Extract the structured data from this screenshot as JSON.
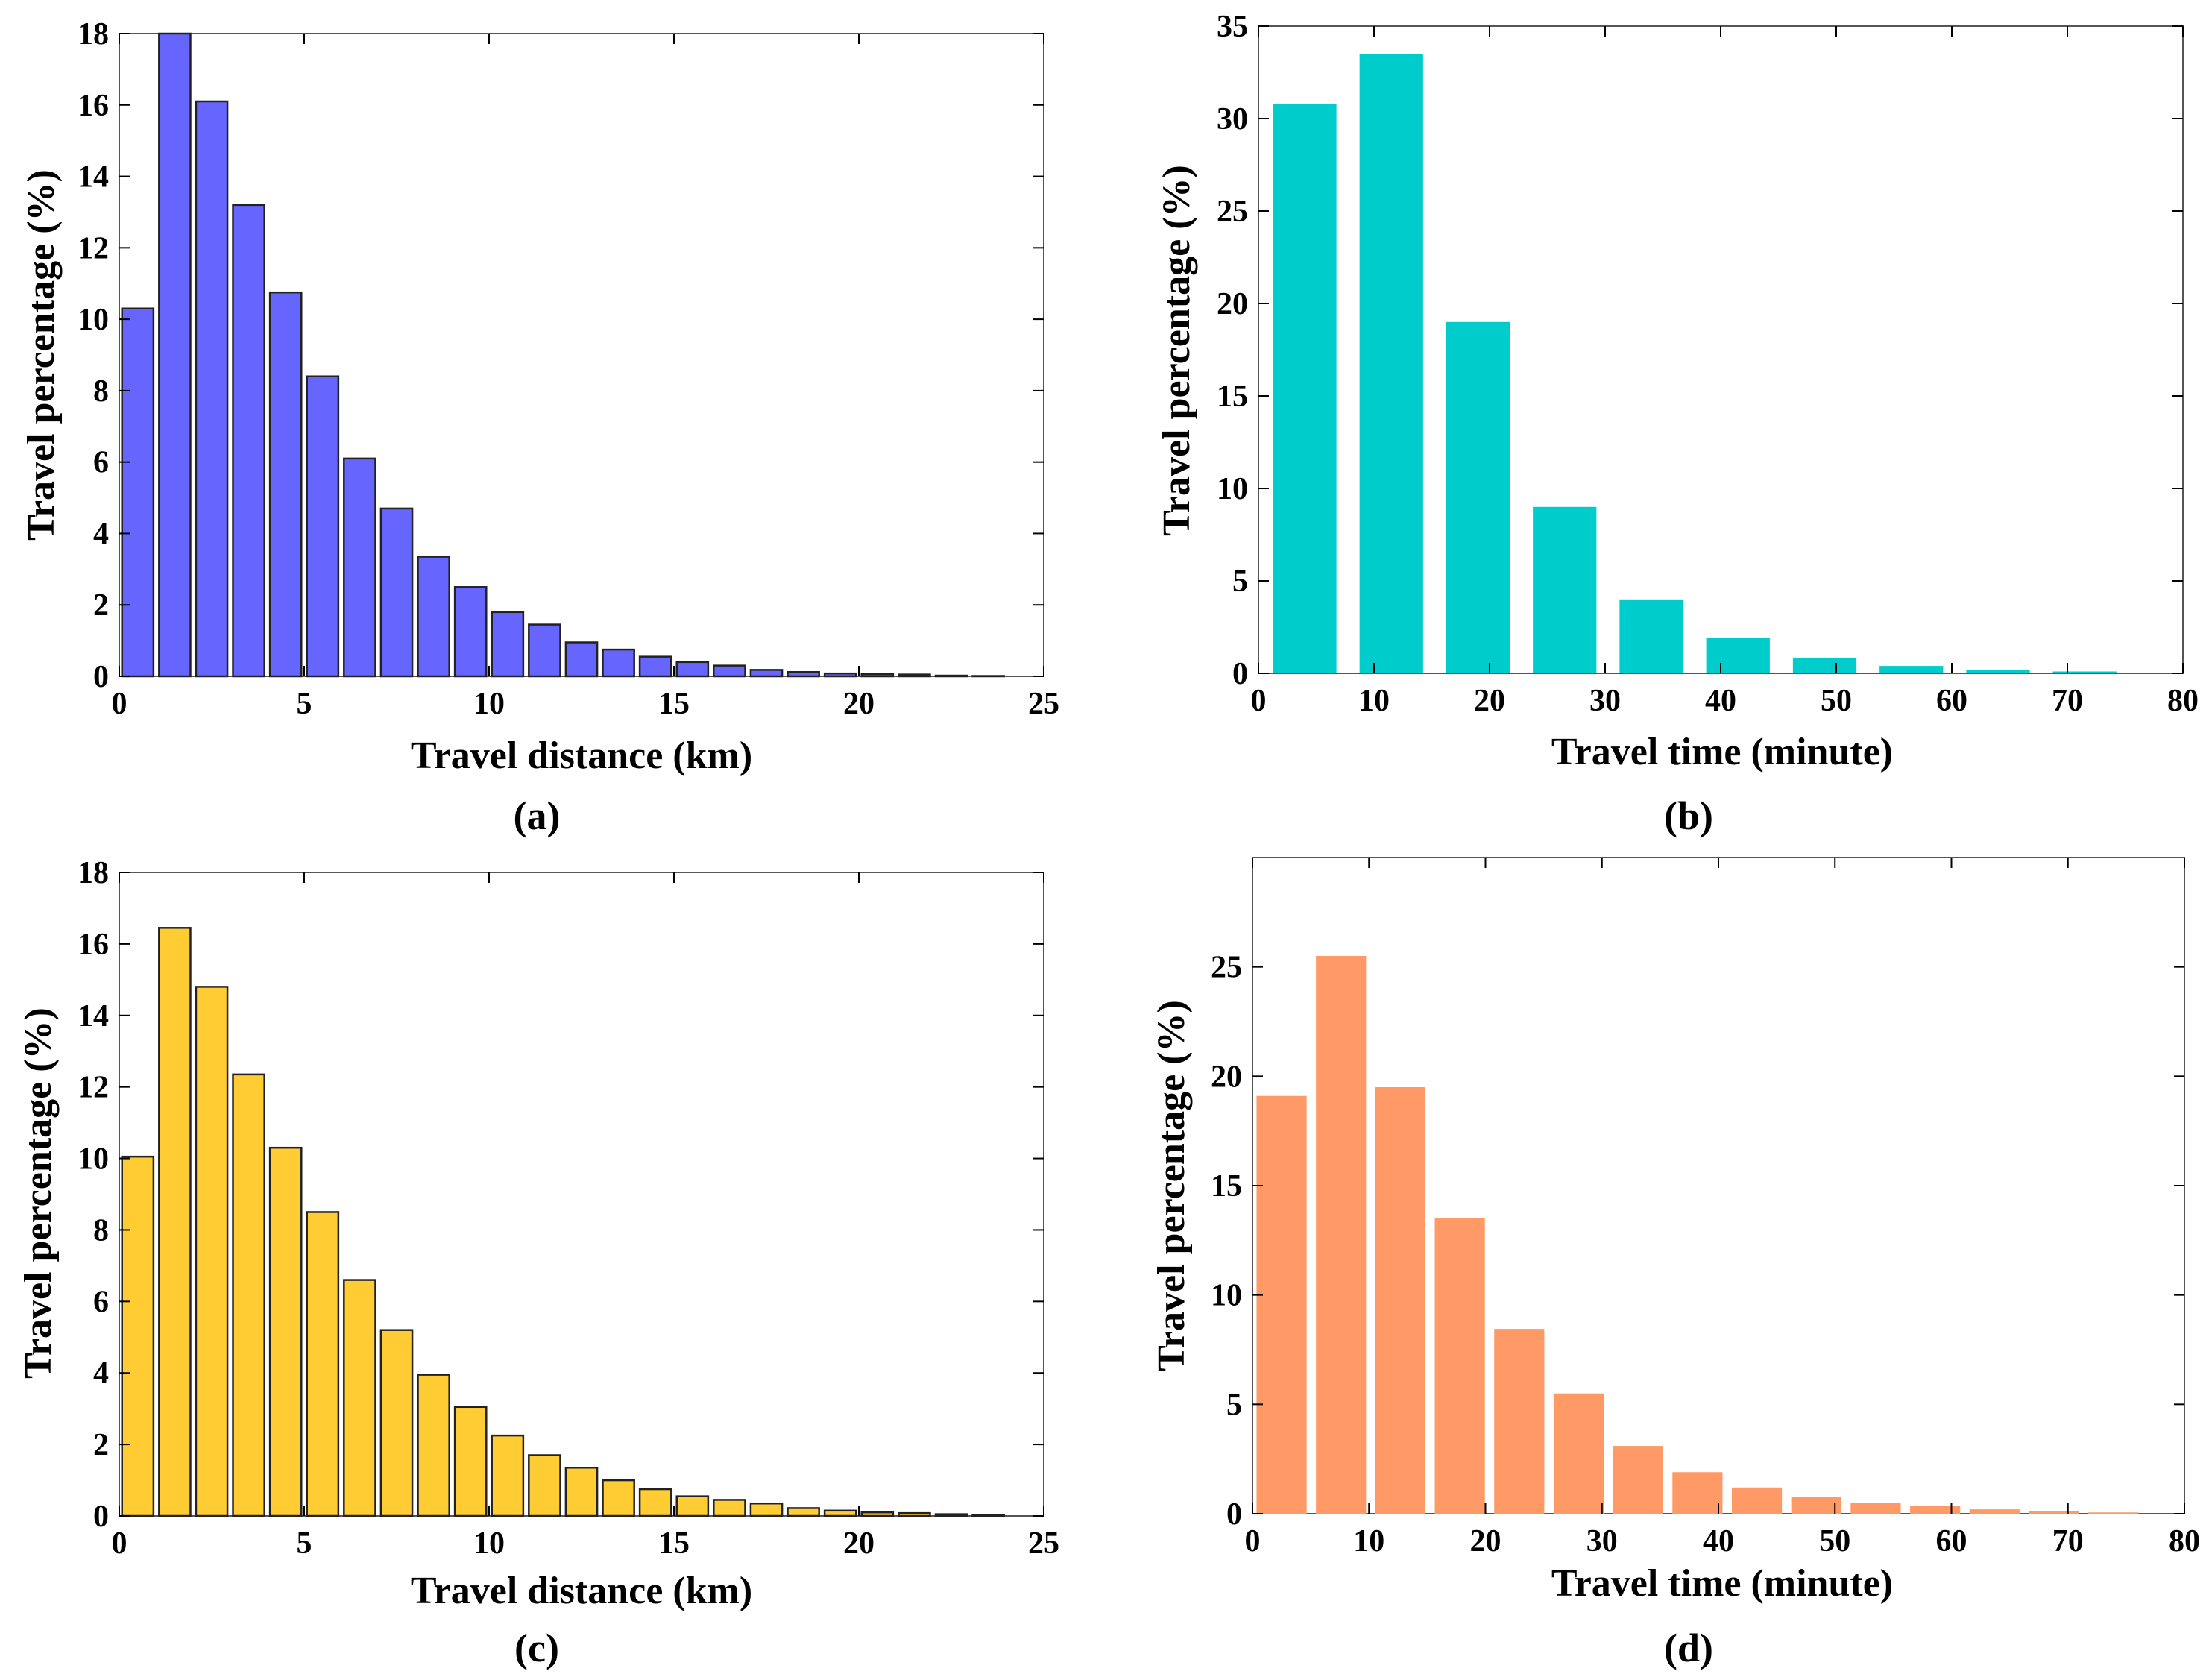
{
  "figure": {
    "panel_labels": [
      "(a)",
      "(b)",
      "(c)",
      "(d)"
    ]
  },
  "chart_data": [
    {
      "id": "a",
      "type": "bar",
      "panel_label": "(a)",
      "xlabel": "Travel distance (km)",
      "ylabel": "Travel percentage (%)",
      "xlim": [
        0,
        25
      ],
      "ylim": [
        0,
        18
      ],
      "xticks": [
        0,
        5,
        10,
        15,
        20,
        25
      ],
      "yticks": [
        0,
        2,
        4,
        6,
        8,
        10,
        12,
        14,
        16,
        18
      ],
      "bar_width": 0.85,
      "color": "#6666ff",
      "edge": true,
      "x": [
        0.5,
        1.5,
        2.5,
        3.5,
        4.5,
        5.5,
        6.5,
        7.5,
        8.5,
        9.5,
        10.5,
        11.5,
        12.5,
        13.5,
        14.5,
        15.5,
        16.5,
        17.5,
        18.5,
        19.5,
        20.5,
        21.5,
        22.5,
        23.5
      ],
      "values": [
        10.3,
        18.0,
        16.1,
        13.2,
        10.75,
        8.4,
        6.1,
        4.7,
        3.35,
        2.5,
        1.8,
        1.45,
        0.95,
        0.75,
        0.55,
        0.4,
        0.3,
        0.18,
        0.12,
        0.08,
        0.06,
        0.05,
        0.02,
        0.01
      ]
    },
    {
      "id": "b",
      "type": "bar",
      "panel_label": "(b)",
      "xlabel": "Travel time (minute)",
      "ylabel": "Travel percentage (%)",
      "xlim": [
        0,
        80
      ],
      "ylim": [
        0,
        35
      ],
      "xticks": [
        0,
        10,
        20,
        30,
        40,
        50,
        60,
        70,
        80
      ],
      "yticks": [
        0,
        5,
        10,
        15,
        20,
        25,
        30,
        35
      ],
      "bar_width": 5.5,
      "color": "#00cccc",
      "edge": false,
      "x": [
        4,
        11.5,
        19,
        26.5,
        34,
        41.5,
        49,
        56.5,
        64,
        71.5
      ],
      "values": [
        30.8,
        33.5,
        19.0,
        9.0,
        4.0,
        1.9,
        0.85,
        0.4,
        0.2,
        0.1
      ]
    },
    {
      "id": "c",
      "type": "bar",
      "panel_label": "(c)",
      "xlabel": "Travel distance (km)",
      "ylabel": "Travel percentage (%)",
      "xlim": [
        0,
        25
      ],
      "ylim": [
        0,
        18
      ],
      "xticks": [
        0,
        5,
        10,
        15,
        20,
        25
      ],
      "yticks": [
        0,
        2,
        4,
        6,
        8,
        10,
        12,
        14,
        16,
        18
      ],
      "bar_width": 0.85,
      "color": "#ffcc33",
      "edge": true,
      "x": [
        0.5,
        1.5,
        2.5,
        3.5,
        4.5,
        5.5,
        6.5,
        7.5,
        8.5,
        9.5,
        10.5,
        11.5,
        12.5,
        13.5,
        14.5,
        15.5,
        16.5,
        17.5,
        18.5,
        19.5,
        20.5,
        21.5,
        22.5,
        23.5
      ],
      "values": [
        10.05,
        16.45,
        14.8,
        12.35,
        10.3,
        8.5,
        6.6,
        5.2,
        3.95,
        3.05,
        2.25,
        1.7,
        1.35,
        1.0,
        0.75,
        0.55,
        0.45,
        0.35,
        0.22,
        0.15,
        0.1,
        0.08,
        0.05,
        0.02
      ]
    },
    {
      "id": "d",
      "type": "bar",
      "panel_label": "(d)",
      "xlabel": "Travel time (minute)",
      "ylabel": "Travel percentage (%)",
      "xlim": [
        0,
        80
      ],
      "ylim": [
        0,
        30
      ],
      "xticks": [
        0,
        10,
        20,
        30,
        40,
        50,
        60,
        70,
        80
      ],
      "yticks": [
        0,
        5,
        10,
        15,
        20,
        25
      ],
      "bar_width": 4.3,
      "color": "#ff9966",
      "edge": false,
      "x": [
        2.5,
        7.6,
        12.7,
        17.8,
        22.9,
        28,
        33.1,
        38.2,
        43.3,
        48.4,
        53.5,
        58.6,
        63.7,
        68.8,
        73.9
      ],
      "values": [
        19.1,
        25.5,
        19.5,
        13.5,
        8.45,
        5.5,
        3.1,
        1.9,
        1.2,
        0.75,
        0.5,
        0.35,
        0.2,
        0.12,
        0.06
      ]
    }
  ]
}
